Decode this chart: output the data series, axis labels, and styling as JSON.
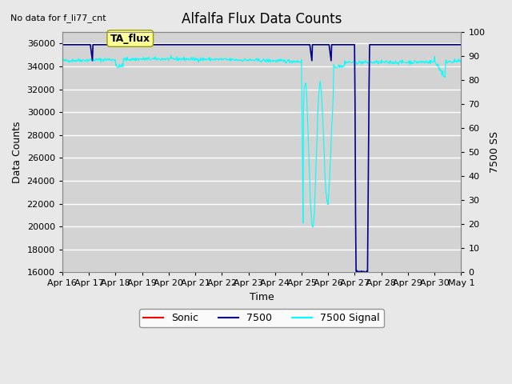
{
  "title": "Alfalfa Flux Data Counts",
  "top_left_text": "No data for f_li77_cnt",
  "xlabel": "Time",
  "ylabel_left": "Data Counts",
  "ylabel_right": "7500 SS",
  "ylim_left": [
    16000,
    37000
  ],
  "ylim_right": [
    0,
    100
  ],
  "yticks_left": [
    16000,
    18000,
    20000,
    22000,
    24000,
    26000,
    28000,
    30000,
    32000,
    34000,
    36000
  ],
  "yticks_right": [
    0,
    10,
    20,
    30,
    40,
    50,
    60,
    70,
    80,
    90,
    100
  ],
  "x_tick_labels": [
    "Apr 16",
    "Apr 17",
    "Apr 18",
    "Apr 19",
    "Apr 20",
    "Apr 21",
    "Apr 22",
    "Apr 23",
    "Apr 24",
    "Apr 25",
    "Apr 26",
    "Apr 27",
    "Apr 28",
    "Apr 29",
    "Apr 30",
    "May 1"
  ],
  "background_color": "#e8e8e8",
  "axes_bg_color": "#d3d3d3",
  "grid_color": "#ffffff",
  "annotation_box_text": "TA_flux",
  "annotation_box_color": "#ffff99",
  "legend_entries": [
    "Sonic",
    "7500",
    "7500 Signal"
  ],
  "legend_colors": [
    "#ff0000",
    "#00008b",
    "#00ffff"
  ],
  "cyan_line_color": "#00ffff",
  "blue_line_color": "#00008b"
}
